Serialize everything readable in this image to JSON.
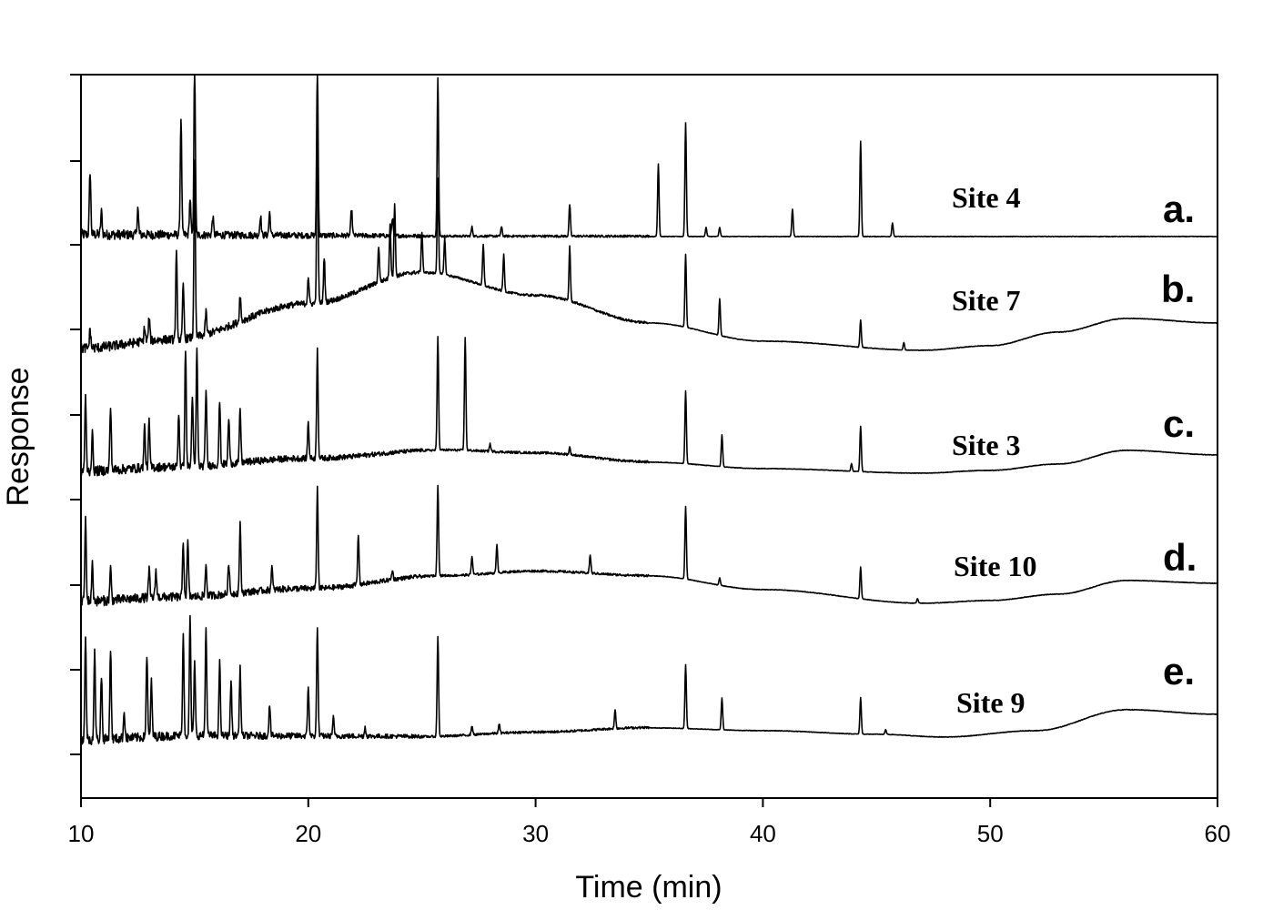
{
  "chart_data": {
    "type": "line",
    "title": "",
    "xlabel": "Time (min)",
    "ylabel": "Response",
    "xlim": [
      10,
      60
    ],
    "xticks": [
      10,
      20,
      30,
      40,
      50,
      60
    ],
    "y_tick_count": 9,
    "grid": false,
    "legend": "none",
    "series": [
      {
        "site": "Site 4",
        "letter": "a.",
        "baseline": 0,
        "drift": [
          [
            10,
            0
          ],
          [
            60,
            0
          ]
        ],
        "peaks": [
          [
            10.4,
            70
          ],
          [
            10.9,
            25
          ],
          [
            12.5,
            30
          ],
          [
            14.4,
            130
          ],
          [
            14.8,
            40
          ],
          [
            15.0,
            190
          ],
          [
            15.8,
            20
          ],
          [
            17.9,
            22
          ],
          [
            18.3,
            25
          ],
          [
            20.4,
            190
          ],
          [
            21.9,
            30
          ],
          [
            23.7,
            20
          ],
          [
            25.7,
            175
          ],
          [
            27.2,
            10
          ],
          [
            28.5,
            10
          ],
          [
            31.5,
            35
          ],
          [
            35.4,
            80
          ],
          [
            36.6,
            125
          ],
          [
            37.5,
            10
          ],
          [
            38.1,
            10
          ],
          [
            41.3,
            30
          ],
          [
            44.3,
            105
          ],
          [
            45.7,
            15
          ]
        ]
      },
      {
        "site": "Site 7",
        "letter": "b.",
        "baseline": 0,
        "drift": [
          [
            10,
            0
          ],
          [
            14,
            10
          ],
          [
            20,
            50
          ],
          [
            25,
            85
          ],
          [
            30,
            60
          ],
          [
            35,
            30
          ],
          [
            40,
            10
          ],
          [
            47,
            0
          ],
          [
            50,
            5
          ],
          [
            53,
            20
          ],
          [
            56,
            35
          ],
          [
            60,
            30
          ]
        ],
        "peaks": [
          [
            10.4,
            20
          ],
          [
            12.8,
            15
          ],
          [
            13.0,
            25
          ],
          [
            14.2,
            95
          ],
          [
            14.5,
            60
          ],
          [
            15.0,
            190
          ],
          [
            15.5,
            25
          ],
          [
            17.0,
            30
          ],
          [
            20.0,
            30
          ],
          [
            20.4,
            190
          ],
          [
            20.7,
            50
          ],
          [
            23.1,
            40
          ],
          [
            23.6,
            60
          ],
          [
            23.8,
            80
          ],
          [
            25.0,
            45
          ],
          [
            25.7,
            105
          ],
          [
            26.0,
            40
          ],
          [
            27.7,
            45
          ],
          [
            28.6,
            40
          ],
          [
            31.5,
            60
          ],
          [
            36.6,
            80
          ],
          [
            38.1,
            40
          ],
          [
            44.3,
            30
          ],
          [
            46.2,
            8
          ]
        ]
      },
      {
        "site": "Site 3",
        "letter": "c.",
        "baseline": 0,
        "drift": [
          [
            10,
            0
          ],
          [
            14,
            5
          ],
          [
            20,
            15
          ],
          [
            26,
            25
          ],
          [
            30,
            22
          ],
          [
            35,
            12
          ],
          [
            40,
            5
          ],
          [
            47,
            0
          ],
          [
            50,
            3
          ],
          [
            53,
            10
          ],
          [
            56,
            25
          ],
          [
            60,
            20
          ]
        ],
        "peaks": [
          [
            10.2,
            80
          ],
          [
            10.5,
            40
          ],
          [
            11.3,
            70
          ],
          [
            12.8,
            45
          ],
          [
            13.0,
            50
          ],
          [
            14.3,
            60
          ],
          [
            14.6,
            130
          ],
          [
            14.9,
            80
          ],
          [
            15.1,
            130
          ],
          [
            15.5,
            85
          ],
          [
            16.1,
            70
          ],
          [
            16.5,
            50
          ],
          [
            17.0,
            60
          ],
          [
            20.0,
            40
          ],
          [
            20.4,
            120
          ],
          [
            25.7,
            125
          ],
          [
            26.9,
            125
          ],
          [
            28.0,
            8
          ],
          [
            31.5,
            8
          ],
          [
            36.6,
            80
          ],
          [
            38.2,
            35
          ],
          [
            44.3,
            50
          ],
          [
            43.9,
            8
          ]
        ]
      },
      {
        "site": "Site 10",
        "letter": "d.",
        "baseline": 0,
        "drift": [
          [
            10,
            0
          ],
          [
            14,
            5
          ],
          [
            20,
            15
          ],
          [
            26,
            30
          ],
          [
            30,
            35
          ],
          [
            35,
            30
          ],
          [
            40,
            15
          ],
          [
            47,
            0
          ],
          [
            50,
            3
          ],
          [
            53,
            10
          ],
          [
            56,
            25
          ],
          [
            60,
            22
          ]
        ],
        "peaks": [
          [
            10.2,
            90
          ],
          [
            10.5,
            40
          ],
          [
            11.3,
            35
          ],
          [
            13.0,
            30
          ],
          [
            13.3,
            30
          ],
          [
            14.5,
            60
          ],
          [
            14.7,
            60
          ],
          [
            15.5,
            35
          ],
          [
            16.5,
            35
          ],
          [
            17.0,
            75
          ],
          [
            18.4,
            25
          ],
          [
            20.4,
            110
          ],
          [
            22.2,
            55
          ],
          [
            23.7,
            10
          ],
          [
            25.7,
            100
          ],
          [
            27.2,
            20
          ],
          [
            28.3,
            30
          ],
          [
            32.4,
            20
          ],
          [
            36.6,
            80
          ],
          [
            38.1,
            8
          ],
          [
            44.3,
            35
          ],
          [
            46.8,
            5
          ]
        ]
      },
      {
        "site": "Site 9",
        "letter": "e.",
        "baseline": 0,
        "drift": [
          [
            10,
            0
          ],
          [
            15,
            5
          ],
          [
            20,
            5
          ],
          [
            25,
            5
          ],
          [
            30,
            10
          ],
          [
            35,
            15
          ],
          [
            40,
            12
          ],
          [
            45,
            8
          ],
          [
            48,
            5
          ],
          [
            52,
            12
          ],
          [
            56,
            35
          ],
          [
            60,
            30
          ]
        ],
        "peaks": [
          [
            10.2,
            110
          ],
          [
            10.6,
            95
          ],
          [
            10.9,
            70
          ],
          [
            11.3,
            100
          ],
          [
            11.9,
            30
          ],
          [
            12.9,
            90
          ],
          [
            13.1,
            60
          ],
          [
            14.5,
            110
          ],
          [
            14.8,
            130
          ],
          [
            15.0,
            80
          ],
          [
            15.5,
            120
          ],
          [
            16.1,
            80
          ],
          [
            16.6,
            60
          ],
          [
            17.0,
            75
          ],
          [
            18.3,
            35
          ],
          [
            20.0,
            55
          ],
          [
            20.4,
            120
          ],
          [
            21.1,
            20
          ],
          [
            22.5,
            10
          ],
          [
            25.7,
            110
          ],
          [
            27.2,
            10
          ],
          [
            28.4,
            10
          ],
          [
            33.5,
            20
          ],
          [
            36.6,
            70
          ],
          [
            38.2,
            35
          ],
          [
            44.3,
            40
          ],
          [
            45.4,
            5
          ]
        ]
      }
    ]
  }
}
